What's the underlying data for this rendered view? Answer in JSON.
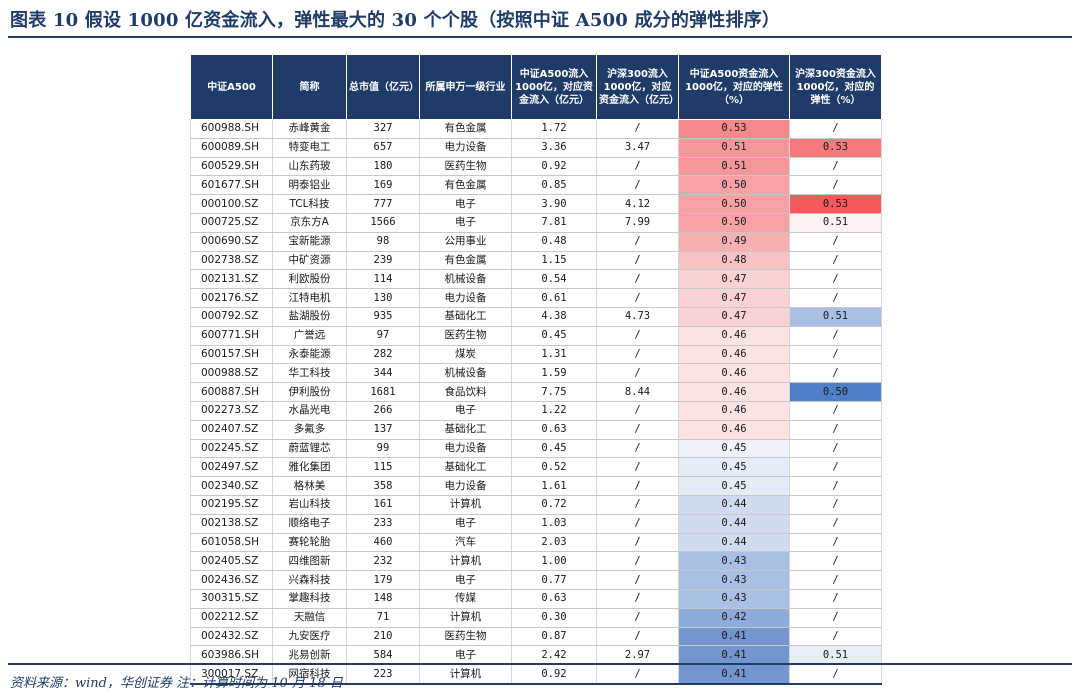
{
  "title": "图表 10   假设 1000 亿资金流入，弹性最大的 30 个个股（按照中证 A500 成分的弹性排序）",
  "columns": [
    "中证A500",
    "简称",
    "总市值（亿元）",
    "所属申万一级行业",
    "中证A500流入1000亿，对应资金流入（亿元）",
    "沪深300流入1000亿，对应资金流入（亿元）",
    "中证A500资金流入1000亿，对应的弹性（%）",
    "沪深300资金流入1000亿，对应的弹性（%）"
  ],
  "rows": [
    [
      "600988.SH",
      "赤峰黄金",
      "327",
      "有色金属",
      "1.72",
      "/",
      "0.53",
      "/"
    ],
    [
      "600089.SH",
      "特变电工",
      "657",
      "电力设备",
      "3.36",
      "3.47",
      "0.51",
      "0.53"
    ],
    [
      "600529.SH",
      "山东药玻",
      "180",
      "医药生物",
      "0.92",
      "/",
      "0.51",
      "/"
    ],
    [
      "601677.SH",
      "明泰铝业",
      "169",
      "有色金属",
      "0.85",
      "/",
      "0.50",
      "/"
    ],
    [
      "000100.SZ",
      "TCL科技",
      "777",
      "电子",
      "3.90",
      "4.12",
      "0.50",
      "0.53"
    ],
    [
      "000725.SZ",
      "京东方A",
      "1566",
      "电子",
      "7.81",
      "7.99",
      "0.50",
      "0.51"
    ],
    [
      "000690.SZ",
      "宝新能源",
      "98",
      "公用事业",
      "0.48",
      "/",
      "0.49",
      "/"
    ],
    [
      "002738.SZ",
      "中矿资源",
      "239",
      "有色金属",
      "1.15",
      "/",
      "0.48",
      "/"
    ],
    [
      "002131.SZ",
      "利欧股份",
      "114",
      "机械设备",
      "0.54",
      "/",
      "0.47",
      "/"
    ],
    [
      "002176.SZ",
      "江特电机",
      "130",
      "电力设备",
      "0.61",
      "/",
      "0.47",
      "/"
    ],
    [
      "000792.SZ",
      "盐湖股份",
      "935",
      "基础化工",
      "4.38",
      "4.73",
      "0.47",
      "0.51"
    ],
    [
      "600771.SH",
      "广誉远",
      "97",
      "医药生物",
      "0.45",
      "/",
      "0.46",
      "/"
    ],
    [
      "600157.SH",
      "永泰能源",
      "282",
      "煤炭",
      "1.31",
      "/",
      "0.46",
      "/"
    ],
    [
      "000988.SZ",
      "华工科技",
      "344",
      "机械设备",
      "1.59",
      "/",
      "0.46",
      "/"
    ],
    [
      "600887.SH",
      "伊利股份",
      "1681",
      "食品饮料",
      "7.75",
      "8.44",
      "0.46",
      "0.50"
    ],
    [
      "002273.SZ",
      "水晶光电",
      "266",
      "电子",
      "1.22",
      "/",
      "0.46",
      "/"
    ],
    [
      "002407.SZ",
      "多氟多",
      "137",
      "基础化工",
      "0.63",
      "/",
      "0.46",
      "/"
    ],
    [
      "002245.SZ",
      "蔚蓝锂芯",
      "99",
      "电力设备",
      "0.45",
      "/",
      "0.45",
      "/"
    ],
    [
      "002497.SZ",
      "雅化集团",
      "115",
      "基础化工",
      "0.52",
      "/",
      "0.45",
      "/"
    ],
    [
      "002340.SZ",
      "格林美",
      "358",
      "电力设备",
      "1.61",
      "/",
      "0.45",
      "/"
    ],
    [
      "002195.SZ",
      "岩山科技",
      "161",
      "计算机",
      "0.72",
      "/",
      "0.44",
      "/"
    ],
    [
      "002138.SZ",
      "顺络电子",
      "233",
      "电子",
      "1.03",
      "/",
      "0.44",
      "/"
    ],
    [
      "601058.SH",
      "赛轮轮胎",
      "460",
      "汽车",
      "2.03",
      "/",
      "0.44",
      "/"
    ],
    [
      "002405.SZ",
      "四维图新",
      "232",
      "计算机",
      "1.00",
      "/",
      "0.43",
      "/"
    ],
    [
      "002436.SZ",
      "兴森科技",
      "179",
      "电子",
      "0.77",
      "/",
      "0.43",
      "/"
    ],
    [
      "300315.SZ",
      "掌趣科技",
      "148",
      "传媒",
      "0.63",
      "/",
      "0.43",
      "/"
    ],
    [
      "002212.SZ",
      "天融信",
      "71",
      "计算机",
      "0.30",
      "/",
      "0.42",
      "/"
    ],
    [
      "002432.SZ",
      "九安医疗",
      "210",
      "医药生物",
      "0.87",
      "/",
      "0.41",
      "/"
    ],
    [
      "603986.SH",
      "兆易创新",
      "584",
      "电子",
      "2.42",
      "2.97",
      "0.41",
      "0.51"
    ],
    [
      "300017.SZ",
      "网宿科技",
      "223",
      "计算机",
      "0.92",
      "/",
      "0.41",
      "/"
    ]
  ],
  "heat_colors": {
    "a500": [
      "#f4888a",
      "#f5979a",
      "#f5979a",
      "#f6a2a5",
      "#f6a2a5",
      "#f6a2a5",
      "#f7b0b2",
      "#f8c1c3",
      "#fad2d4",
      "#fad2d4",
      "#fad2d4",
      "#fbe3e4",
      "#fbe3e4",
      "#fbe3e4",
      "#fbe3e4",
      "#fbe3e4",
      "#fbe3e4",
      "#eef2fa",
      "#e6ecf7",
      "#e6ecf7",
      "#cfdcf0",
      "#cfdcf0",
      "#cfdcf0",
      "#a9c0e4",
      "#a9c0e4",
      "#a9c0e4",
      "#8eacdb",
      "#7396d1",
      "#7396d1",
      "#7396d1"
    ],
    "hs300": [
      "#ffffff",
      "#f47a7c",
      "#ffffff",
      "#ffffff",
      "#f25a5c",
      "#fdf1f1",
      "#ffffff",
      "#ffffff",
      "#ffffff",
      "#ffffff",
      "#a9c0e4",
      "#ffffff",
      "#ffffff",
      "#ffffff",
      "#4f7fc6",
      "#ffffff",
      "#ffffff",
      "#ffffff",
      "#ffffff",
      "#ffffff",
      "#ffffff",
      "#ffffff",
      "#ffffff",
      "#ffffff",
      "#ffffff",
      "#ffffff",
      "#ffffff",
      "#ffffff",
      "#e8eef8",
      "#ffffff"
    ]
  },
  "source": "资料来源：wind，华创证券  注：计算时间为 10 月 18 日"
}
